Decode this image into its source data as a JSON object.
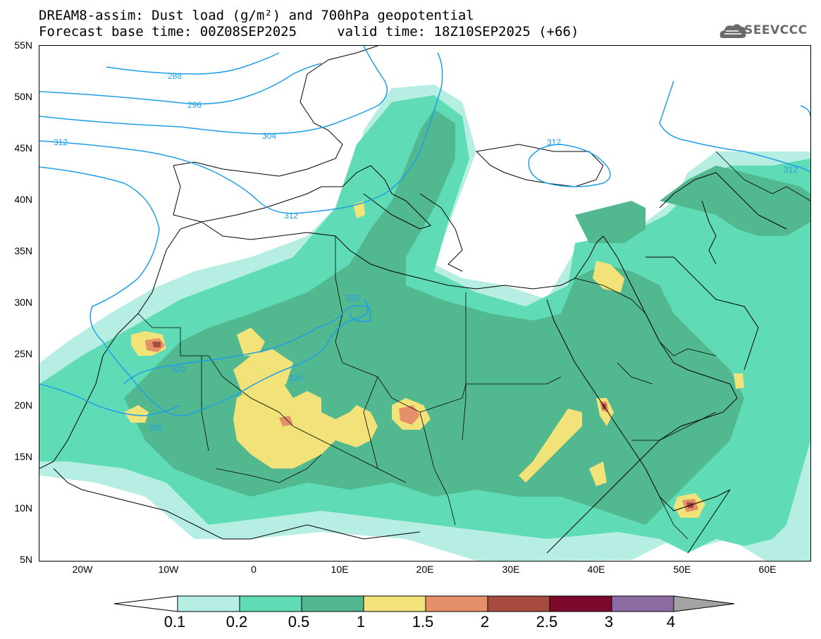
{
  "title_line1": "DREAM8-assim: Dust load (g/m²) and 700hPa geopotential",
  "title_line2": "Forecast base time: 00Z08SEP2025     valid time: 18Z10SEP2025 (+66)",
  "logo_text": "SEEVCCC",
  "y_axis_labels": [
    "55N",
    "50N",
    "45N",
    "40N",
    "35N",
    "30N",
    "25N",
    "20N",
    "15N",
    "10N",
    "5N"
  ],
  "x_axis_labels": [
    "20W",
    "10W",
    "0",
    "10E",
    "20E",
    "30E",
    "40E",
    "50E",
    "60E"
  ],
  "contour_labels": [
    {
      "text": "288"
    },
    {
      "text": "296"
    },
    {
      "text": "304"
    },
    {
      "text": "312"
    },
    {
      "text": "312"
    },
    {
      "text": "312"
    },
    {
      "text": "312"
    },
    {
      "text": "320"
    },
    {
      "text": "320"
    },
    {
      "text": "320"
    },
    {
      "text": "320"
    }
  ],
  "colorbar": {
    "labels": [
      "0.1",
      "0.2",
      "0.5",
      "1",
      "1.5",
      "2",
      "2.5",
      "3",
      "4"
    ],
    "colors": [
      "#b6eee3",
      "#5fdcb5",
      "#52b88f",
      "#f1e27a",
      "#e6906a",
      "#a64b3d",
      "#7c0a2c",
      "#8f6ba3",
      "#a3a3a3"
    ]
  },
  "map_colors": {
    "contour_line": "#1e9fe6",
    "coastline": "#000000"
  }
}
